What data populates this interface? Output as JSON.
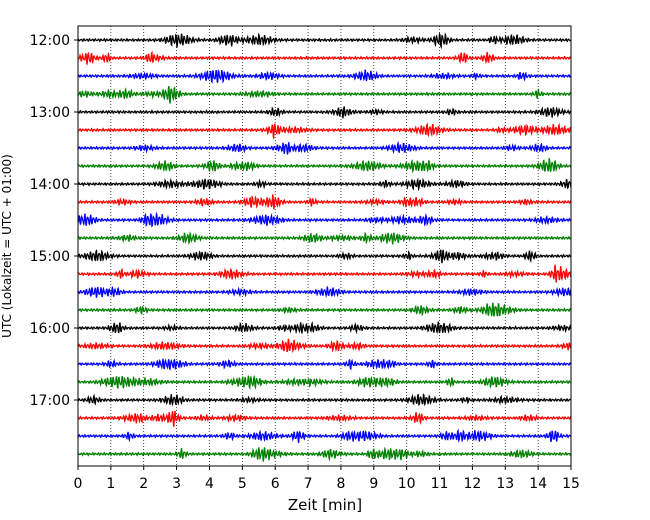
{
  "chart_data": {
    "type": "line",
    "title": "",
    "xlabel": "Zeit  [min]",
    "ylabel": "UTC (Lokalzeit = UTC + 01:00)",
    "xlim": [
      0,
      15
    ],
    "x_ticks": [
      0,
      1,
      2,
      3,
      4,
      5,
      6,
      7,
      8,
      9,
      10,
      11,
      12,
      13,
      14,
      15
    ],
    "x_tick_labels": [
      "0",
      "1",
      "2",
      "3",
      "4",
      "5",
      "6",
      "7",
      "8",
      "9",
      "10",
      "11",
      "12",
      "13",
      "14",
      "15"
    ],
    "y_tick_labels": [
      "12:00",
      "13:00",
      "14:00",
      "15:00",
      "16:00",
      "17:00"
    ],
    "y_tick_rows": [
      0,
      4,
      8,
      12,
      16,
      20
    ],
    "row_count": 24,
    "row_minutes": 15,
    "start_time_utc": "12:00",
    "row_colors": [
      "#000000",
      "#ff0000",
      "#0000ff",
      "#008000"
    ],
    "grid": "vertical dotted at each minute"
  }
}
